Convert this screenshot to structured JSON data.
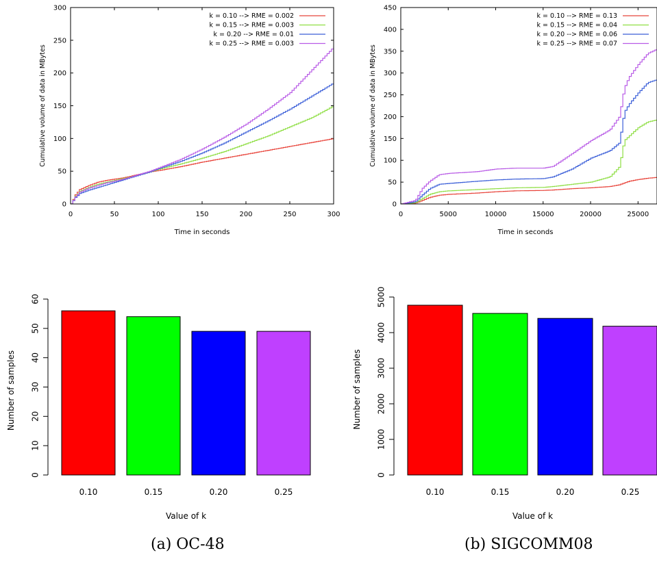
{
  "captions": {
    "a": "(a)  OC-48",
    "b": "(b)  SIGCOMM08"
  },
  "series_colors": [
    "#e8433a",
    "#8ede42",
    "#3a5ed8",
    "#b85ae6"
  ],
  "bar_colors": [
    "#ff0000",
    "#00ff00",
    "#0000ff",
    "#bf40ff"
  ],
  "chart_data": [
    {
      "type": "line",
      "panel": "OC-48 cumulative volume",
      "xlabel": "Time in seconds",
      "ylabel": "Cumulative volume of data in MBytes",
      "xlim": [
        0,
        300
      ],
      "ylim": [
        0,
        300
      ],
      "xticks": [
        0,
        50,
        100,
        150,
        200,
        250,
        300
      ],
      "yticks": [
        0,
        50,
        100,
        150,
        200,
        250,
        300
      ],
      "legend_position": "top-right",
      "series": [
        {
          "name": "k = 0.10 --> RME = 0.002",
          "x": [
            0,
            5,
            10,
            20,
            30,
            40,
            50,
            60,
            70,
            80,
            90,
            100,
            125,
            150,
            175,
            200,
            225,
            250,
            275,
            300
          ],
          "y": [
            0,
            14,
            22,
            28,
            33,
            36,
            38,
            40,
            43,
            46,
            49,
            51,
            57,
            64,
            70,
            76,
            82,
            88,
            94,
            100
          ]
        },
        {
          "name": "k = 0.15 --> RME = 0.003",
          "x": [
            0,
            5,
            10,
            20,
            30,
            40,
            50,
            60,
            70,
            80,
            90,
            100,
            125,
            150,
            175,
            200,
            225,
            250,
            275,
            300
          ],
          "y": [
            0,
            12,
            19,
            25,
            30,
            33,
            36,
            39,
            42,
            45,
            49,
            53,
            61,
            70,
            80,
            92,
            104,
            118,
            132,
            150
          ]
        },
        {
          "name": "k = 0.20 --> RME = 0.01",
          "x": [
            0,
            5,
            10,
            20,
            30,
            40,
            50,
            60,
            70,
            80,
            90,
            100,
            125,
            150,
            175,
            200,
            225,
            250,
            275,
            300
          ],
          "y": [
            0,
            10,
            16,
            21,
            25,
            29,
            33,
            37,
            41,
            45,
            49,
            54,
            65,
            78,
            93,
            110,
            127,
            145,
            165,
            185
          ]
        },
        {
          "name": "k = 0.25 --> RME = 0.003",
          "x": [
            0,
            5,
            10,
            20,
            30,
            40,
            50,
            60,
            70,
            80,
            90,
            100,
            125,
            150,
            175,
            200,
            225,
            250,
            275,
            300
          ],
          "y": [
            0,
            11,
            18,
            24,
            28,
            32,
            35,
            38,
            42,
            46,
            50,
            55,
            68,
            84,
            102,
            122,
            145,
            170,
            205,
            240
          ]
        }
      ]
    },
    {
      "type": "line",
      "panel": "SIGCOMM08 cumulative volume",
      "xlabel": "Time in seconds",
      "ylabel": "Cumulative volume of data in MBytes",
      "xlim": [
        0,
        27000
      ],
      "ylim": [
        0,
        450
      ],
      "xticks": [
        0,
        5000,
        10000,
        15000,
        20000,
        25000
      ],
      "yticks": [
        0,
        50,
        100,
        150,
        200,
        250,
        300,
        350,
        400,
        450
      ],
      "legend_position": "top-right",
      "series": [
        {
          "name": "k = 0.10 --> RME = 0.13",
          "x": [
            0,
            1500,
            2200,
            3000,
            4000,
            5000,
            8000,
            10000,
            12000,
            15000,
            16000,
            18000,
            20000,
            22000,
            23000,
            23500,
            24000,
            25000,
            26000,
            27000
          ],
          "y": [
            0,
            2,
            8,
            15,
            20,
            22,
            25,
            28,
            30,
            31,
            32,
            35,
            37,
            40,
            44,
            48,
            52,
            56,
            59,
            61
          ]
        },
        {
          "name": "k = 0.15 --> RME = 0.04",
          "x": [
            0,
            1500,
            2200,
            3000,
            4000,
            5000,
            8000,
            10000,
            12000,
            15000,
            16000,
            18000,
            20000,
            22000,
            23000,
            23500,
            24000,
            25000,
            26000,
            27000
          ],
          "y": [
            0,
            3,
            12,
            22,
            28,
            30,
            33,
            35,
            37,
            38,
            40,
            45,
            50,
            62,
            85,
            145,
            155,
            175,
            188,
            193
          ]
        },
        {
          "name": "k = 0.20 --> RME = 0.06",
          "x": [
            0,
            1500,
            2200,
            3000,
            4000,
            5000,
            8000,
            10000,
            12000,
            15000,
            16000,
            18000,
            20000,
            22000,
            23000,
            23500,
            24000,
            25000,
            26000,
            27000
          ],
          "y": [
            0,
            5,
            20,
            35,
            45,
            47,
            52,
            55,
            57,
            58,
            62,
            80,
            105,
            122,
            140,
            210,
            228,
            255,
            278,
            285
          ]
        },
        {
          "name": "k = 0.25 --> RME = 0.07",
          "x": [
            0,
            1500,
            2200,
            3000,
            4000,
            5000,
            8000,
            10000,
            12000,
            15000,
            16000,
            18000,
            20000,
            22000,
            23000,
            23500,
            24000,
            25000,
            26000,
            27000
          ],
          "y": [
            0,
            8,
            35,
            52,
            67,
            70,
            74,
            80,
            82,
            82,
            86,
            115,
            145,
            170,
            200,
            265,
            290,
            320,
            345,
            355
          ]
        }
      ]
    },
    {
      "type": "bar",
      "panel": "OC-48 samples",
      "xlabel": "Value of k",
      "ylabel": "Number of samples",
      "categories": [
        "0.10",
        "0.15",
        "0.20",
        "0.25"
      ],
      "values": [
        56,
        54,
        49,
        49
      ],
      "ylim": [
        0,
        60
      ],
      "yticks": [
        0,
        10,
        20,
        30,
        40,
        50,
        60
      ]
    },
    {
      "type": "bar",
      "panel": "SIGCOMM08 samples",
      "xlabel": "Value of k",
      "ylabel": "Number of samples",
      "categories": [
        "0.10",
        "0.15",
        "0.20",
        "0.25"
      ],
      "values": [
        4770,
        4540,
        4400,
        4180
      ],
      "ylim": [
        0,
        5000
      ],
      "yticks": [
        0,
        1000,
        2000,
        3000,
        4000,
        5000
      ]
    }
  ]
}
